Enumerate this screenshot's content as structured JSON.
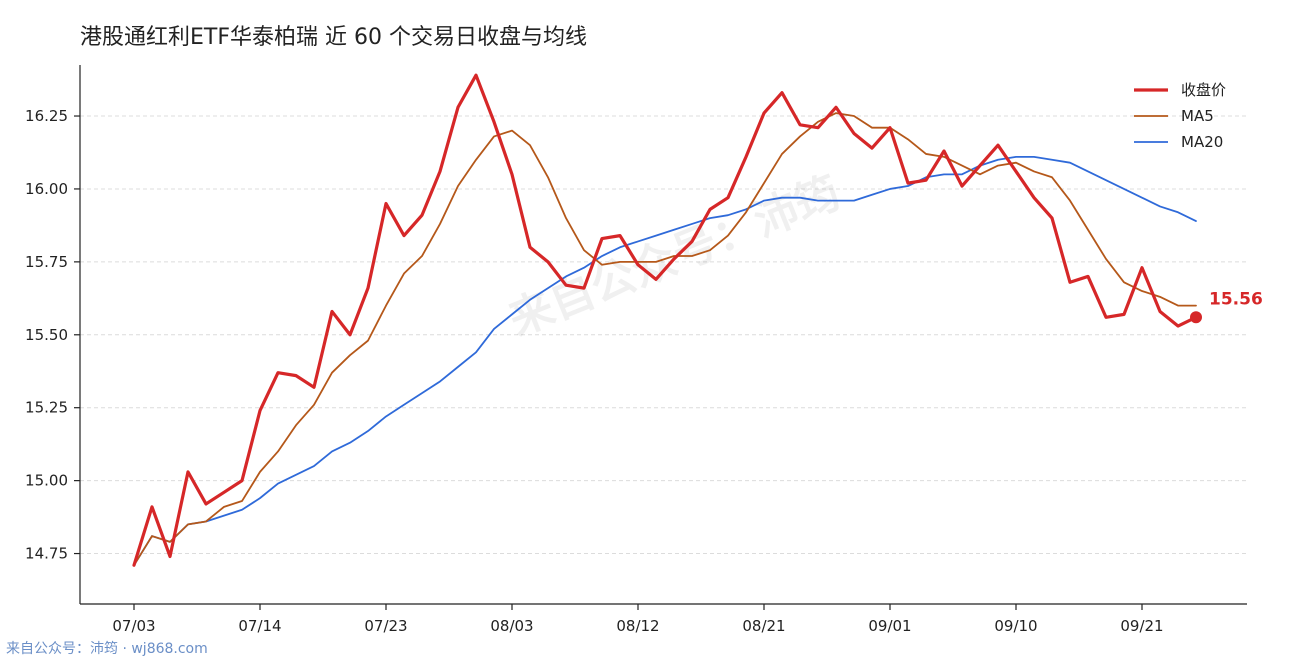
{
  "chart_data": {
    "type": "line",
    "title": "港股通红利ETF华泰柏瑞 近 60 个交易日收盘与均线",
    "xlabel": "",
    "ylabel": "",
    "x_tick_labels": [
      "07/03",
      "07/14",
      "07/23",
      "08/03",
      "08/12",
      "08/21",
      "09/01",
      "09/10",
      "09/21"
    ],
    "x_tick_indices": [
      0,
      7,
      14,
      21,
      28,
      35,
      42,
      49,
      56
    ],
    "y_ticks": [
      14.75,
      15.0,
      15.25,
      15.5,
      15.75,
      16.0,
      16.25
    ],
    "ylim": [
      14.6,
      16.5
    ],
    "n_points": 60,
    "grid": "horizontal-dashed",
    "legend_position": "top-right",
    "series": [
      {
        "name": "收盘价",
        "color": "#d62728",
        "width": 3.2,
        "values": [
          14.71,
          14.91,
          14.74,
          15.03,
          14.92,
          14.96,
          15.0,
          15.24,
          15.37,
          15.36,
          15.32,
          15.58,
          15.5,
          15.66,
          15.95,
          15.84,
          15.91,
          16.06,
          16.28,
          16.39,
          16.23,
          16.05,
          15.8,
          15.75,
          15.67,
          15.66,
          15.83,
          15.84,
          15.74,
          15.69,
          15.76,
          15.82,
          15.93,
          15.97,
          16.11,
          16.26,
          16.33,
          16.22,
          16.21,
          16.28,
          16.19,
          16.14,
          16.21,
          16.02,
          16.03,
          16.13,
          16.01,
          16.08,
          16.15,
          16.06,
          15.97,
          15.9,
          15.68,
          15.7,
          15.56,
          15.57,
          15.73,
          15.58,
          15.53,
          15.56
        ]
      },
      {
        "name": "MA5",
        "color": "#b5581a",
        "width": 1.8,
        "values": [
          14.71,
          14.81,
          14.79,
          14.85,
          14.86,
          14.91,
          14.93,
          15.03,
          15.1,
          15.19,
          15.26,
          15.37,
          15.43,
          15.48,
          15.6,
          15.71,
          15.77,
          15.88,
          16.01,
          16.1,
          16.18,
          16.2,
          16.15,
          16.04,
          15.9,
          15.79,
          15.74,
          15.75,
          15.75,
          15.75,
          15.77,
          15.77,
          15.79,
          15.84,
          15.92,
          16.02,
          16.12,
          16.18,
          16.23,
          16.26,
          16.25,
          16.21,
          16.21,
          16.17,
          16.12,
          16.11,
          16.08,
          16.05,
          16.08,
          16.09,
          16.06,
          16.04,
          15.96,
          15.86,
          15.76,
          15.68,
          15.65,
          15.63,
          15.6,
          15.6
        ]
      },
      {
        "name": "MA20",
        "color": "#2f6ad9",
        "width": 1.8,
        "values": [
          14.71,
          14.81,
          14.79,
          14.85,
          14.86,
          14.88,
          14.9,
          14.94,
          14.99,
          15.02,
          15.05,
          15.1,
          15.13,
          15.17,
          15.22,
          15.26,
          15.3,
          15.34,
          15.39,
          15.44,
          15.52,
          15.57,
          15.62,
          15.66,
          15.7,
          15.73,
          15.77,
          15.8,
          15.82,
          15.84,
          15.86,
          15.88,
          15.9,
          15.91,
          15.93,
          15.96,
          15.97,
          15.97,
          15.96,
          15.96,
          15.96,
          15.98,
          16.0,
          16.01,
          16.04,
          16.05,
          16.05,
          16.08,
          16.1,
          16.11,
          16.11,
          16.1,
          16.09,
          16.06,
          16.03,
          16.0,
          15.97,
          15.94,
          15.92,
          15.89
        ]
      }
    ],
    "last_value_label": "15.56"
  },
  "watermark": "来自公众号：沛筠",
  "footer": "来自公众号：沛筠 · wj868.com",
  "colors": {
    "close": "#d62728",
    "ma5": "#b5581a",
    "ma20": "#2f6ad9",
    "grid": "#dcdcdc",
    "axis": "#222222"
  }
}
